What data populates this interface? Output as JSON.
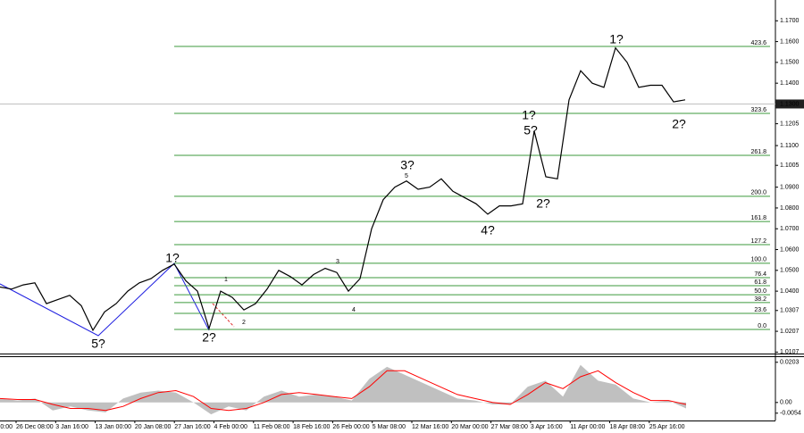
{
  "chart_data": {
    "type": "line",
    "price": {
      "color": "#000000",
      "values": [
        1.042,
        1.041,
        1.043,
        1.044,
        1.034,
        1.036,
        1.038,
        1.033,
        1.0212,
        1.03,
        1.034,
        1.04,
        1.044,
        1.046,
        1.05,
        1.053,
        1.045,
        1.04,
        1.022,
        1.04,
        1.037,
        1.031,
        1.034,
        1.041,
        1.05,
        1.047,
        1.043,
        1.048,
        1.051,
        1.049,
        1.04,
        1.046,
        1.07,
        1.084,
        1.09,
        1.093,
        1.089,
        1.09,
        1.094,
        1.088,
        1.085,
        1.082,
        1.077,
        1.081,
        1.081,
        1.082,
        1.117,
        1.095,
        1.094,
        1.132,
        1.146,
        1.14,
        1.138,
        1.157,
        1.15,
        1.138,
        1.139,
        1.139,
        1.131,
        1.132
      ]
    },
    "ylim": [
      1.01,
      1.18
    ],
    "yticks": [
      1.0107,
      1.0207,
      1.0307,
      {
        "value": 1.04,
        "label": "1.0400"
      },
      {
        "value": 1.05,
        "label": "1.0500"
      },
      {
        "value": 1.06,
        "label": "1.0600"
      },
      {
        "value": 1.07,
        "label": "1.0700"
      },
      {
        "value": 1.08,
        "label": "1.0800"
      },
      {
        "value": 1.09,
        "label": "1.0900"
      },
      1.1005,
      {
        "value": 1.11,
        "label": "1.1100"
      },
      1.1205,
      {
        "value": 1.14,
        "label": "1.1400"
      },
      {
        "value": 1.15,
        "label": "1.1500"
      },
      {
        "value": 1.16,
        "label": "1.1600"
      },
      {
        "value": 1.17,
        "label": "1.1700"
      }
    ],
    "current_price": {
      "value": 1.13,
      "label": "1.1300"
    },
    "fib_levels": {
      "color": "#3c9a3c",
      "labels": [
        "0.0",
        "23.6",
        "38.2",
        "50.0",
        "61.8",
        "76.4",
        "100.0",
        "127.2",
        "161.8",
        "200.0",
        "261.8",
        "323.6",
        "423.6"
      ],
      "prices": [
        1.0216,
        1.0293,
        1.0345,
        1.0383,
        1.0426,
        1.0465,
        1.0534,
        1.0624,
        1.0735,
        1.0856,
        1.1053,
        1.1255,
        1.1577
      ]
    },
    "wave_labels": [
      {
        "text": "1?",
        "color": "#2020e0"
      },
      {
        "text": "5?",
        "color": "#2020e0"
      },
      {
        "text": "2?",
        "color": "#2020e0"
      },
      {
        "text": "1",
        "color": "#e03030"
      },
      {
        "text": "2",
        "color": "#e03030"
      },
      {
        "text": "3",
        "color": "#e03030"
      },
      {
        "text": "4",
        "color": "#e03030"
      },
      {
        "text": "5",
        "color": "#e03030"
      },
      {
        "text": "3?",
        "color": "#2020e0"
      },
      {
        "text": "4?",
        "color": "#2020e0"
      },
      {
        "text": "5?",
        "color": "#2020e0"
      },
      {
        "text": "1?",
        "color": "#e03030"
      },
      {
        "text": "2?",
        "color": "#e03030"
      },
      {
        "text": "1?",
        "color": "#2020e0"
      },
      {
        "text": "2?",
        "color": "#2020e0"
      }
    ],
    "categories": [
      "0:00",
      "26 Dec 08:00",
      "3 Jan 16:00",
      "13 Jan 00:00",
      "20 Jan 08:00",
      "27 Jan 16:00",
      "4 Feb 00:00",
      "11 Feb 08:00",
      "18 Feb 16:00",
      "26 Feb 00:00",
      "5 Mar 08:00",
      "12 Mar 16:00",
      "20 Mar 00:00",
      "27 Mar 08:00",
      "3 Apr 16:00",
      "11 Apr 00:00",
      "18 Apr 08:00",
      "25 Apr 16:00"
    ],
    "oscillator": {
      "ylim": [
        -0.0091,
        0.0229
      ],
      "yticks": [
        0.0203,
        {
          "value": 0,
          "label": "0.00"
        },
        -0.0054
      ],
      "color": "#c0c0c0",
      "signal_color": "#ff0000",
      "values": [
        0.002,
        0.001,
        0.002,
        -0.004,
        -0.002,
        -0.004,
        -0.005,
        0.002,
        0.005,
        0.006,
        0.005,
        0.0,
        -0.006,
        -0.002,
        -0.004,
        0.003,
        0.006,
        0.003,
        0.004,
        0.003,
        0.001,
        0.012,
        0.018,
        0.014,
        0.01,
        0.006,
        0.002,
        0.001,
        -0.001,
        -0.001,
        0.008,
        0.011,
        0.003,
        0.019,
        0.011,
        0.009,
        0.002,
        0.0,
        0.001,
        -0.003
      ],
      "signal": [
        0.002,
        0.0015,
        0.0015,
        -0.001,
        -0.003,
        -0.003,
        -0.004,
        -0.002,
        0.002,
        0.005,
        0.006,
        0.003,
        -0.003,
        -0.004,
        -0.003,
        0.0,
        0.004,
        0.005,
        0.004,
        0.003,
        0.002,
        0.008,
        0.016,
        0.016,
        0.012,
        0.008,
        0.004,
        0.002,
        0.0,
        -0.001,
        0.004,
        0.01,
        0.007,
        0.013,
        0.016,
        0.01,
        0.005,
        0.001,
        0.001,
        -0.001
      ]
    }
  }
}
